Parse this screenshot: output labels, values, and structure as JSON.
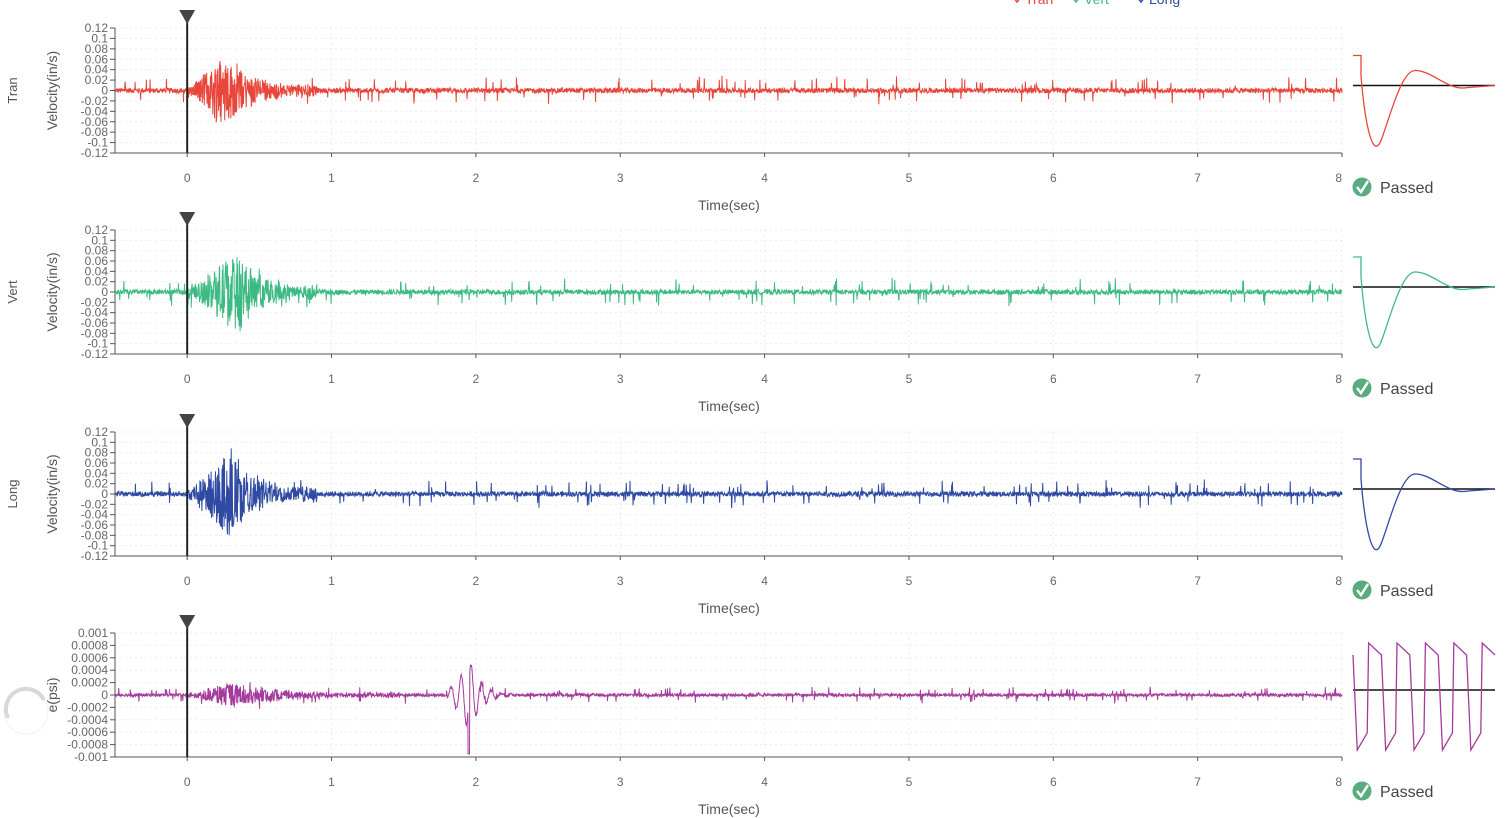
{
  "legend": [
    {
      "label": "Tran",
      "color": "#e8463a"
    },
    {
      "label": "Vert",
      "color": "#3dba83"
    },
    {
      "label": "Long",
      "color": "#2e4aa3"
    }
  ],
  "status_label": "Passed",
  "x_axis": {
    "label": "Time(sec)",
    "min": -0.5,
    "max": 8,
    "ticks": [
      0,
      1,
      2,
      3,
      4,
      5,
      6,
      7,
      8
    ],
    "trigger_time": 0
  },
  "chart_data": [
    {
      "type": "line",
      "channel": "Tran",
      "ylabel": "Velocity(in/s)",
      "color": "#e8463a",
      "ylim": [
        -0.12,
        0.12
      ],
      "yticks": [
        "0.12",
        "0.1",
        "0.08",
        "0.06",
        "0.04",
        "0.02",
        "0",
        "-0.02",
        "-0.04",
        "-0.06",
        "-0.08",
        "-0.1",
        "-0.12"
      ],
      "ytick_values": [
        0.12,
        0.1,
        0.08,
        0.06,
        0.04,
        0.02,
        0,
        -0.02,
        -0.04,
        -0.06,
        -0.08,
        -0.1,
        -0.12
      ],
      "burst": {
        "start": 0,
        "peak": 0.25,
        "end": 0.9,
        "peak_amplitude": 0.07
      },
      "baseline_noise": 0.008,
      "spike_amplitude": 0.02,
      "status": "Passed"
    },
    {
      "type": "line",
      "channel": "Vert",
      "ylabel": "Velocity(in/s)",
      "color": "#3dba83",
      "ylim": [
        -0.12,
        0.12
      ],
      "yticks": [
        "0.12",
        "0.1",
        "0.08",
        "0.06",
        "0.04",
        "0.02",
        "0",
        "-0.02",
        "-0.04",
        "-0.06",
        "-0.08",
        "-0.1",
        "-0.12"
      ],
      "ytick_values": [
        0.12,
        0.1,
        0.08,
        0.06,
        0.04,
        0.02,
        0,
        -0.02,
        -0.04,
        -0.06,
        -0.08,
        -0.1,
        -0.12
      ],
      "burst": {
        "start": 0,
        "peak": 0.35,
        "end": 0.9,
        "peak_amplitude": 0.08
      },
      "baseline_noise": 0.008,
      "spike_amplitude": 0.02,
      "status": "Passed"
    },
    {
      "type": "line",
      "channel": "Long",
      "ylabel": "Velocity(in/s)",
      "color": "#2e4aa3",
      "ylim": [
        -0.12,
        0.12
      ],
      "yticks": [
        "0.12",
        "0.1",
        "0.08",
        "0.06",
        "0.04",
        "0.02",
        "0",
        "-0.02",
        "-0.04",
        "-0.06",
        "-0.08",
        "-0.1",
        "-0.12"
      ],
      "ytick_values": [
        0.12,
        0.1,
        0.08,
        0.06,
        0.04,
        0.02,
        0,
        -0.02,
        -0.04,
        -0.06,
        -0.08,
        -0.1,
        -0.12
      ],
      "burst": {
        "start": 0,
        "peak": 0.3,
        "end": 0.9,
        "peak_amplitude": 0.085
      },
      "baseline_noise": 0.008,
      "spike_amplitude": 0.02,
      "status": "Passed"
    },
    {
      "type": "line",
      "channel": "",
      "ylabel": "e(psi)",
      "color": "#a43b9c",
      "ylim": [
        -0.001,
        0.001
      ],
      "yticks": [
        "0.001",
        "0.0008",
        "0.0006",
        "0.0004",
        "0.0002",
        "0",
        "-0.0002",
        "-0.0004",
        "-0.0006",
        "-0.0008",
        "-0.001"
      ],
      "ytick_values": [
        0.001,
        0.0008,
        0.0006,
        0.0004,
        0.0002,
        0,
        -0.0002,
        -0.0004,
        -0.0006,
        -0.0008,
        -0.001
      ],
      "burst": {
        "start": 0,
        "peak": 0.3,
        "end": 1.5,
        "peak_amplitude": 0.0002
      },
      "event": {
        "time": 1.95,
        "min": -0.001,
        "max": 0.0006
      },
      "baseline_noise": 4e-05,
      "spike_amplitude": 0.0001,
      "status": "Passed"
    }
  ]
}
